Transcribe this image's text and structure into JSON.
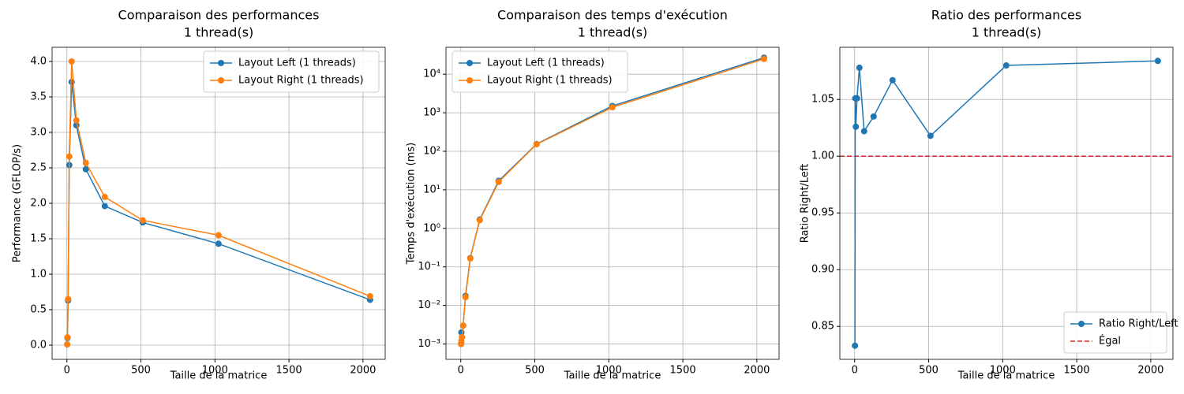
{
  "chart_data": [
    {
      "type": "line",
      "title": "Comparaison des performances",
      "subtitle": "1 thread(s)",
      "xlabel": "Taille de la matrice",
      "ylabel": "Performance (GFLOP/s)",
      "x": [
        2,
        4,
        8,
        16,
        32,
        64,
        128,
        256,
        512,
        1024,
        2048
      ],
      "series": [
        {
          "name": "Layout Left (1 threads)",
          "color": "#1f77b4",
          "values": [
            0.01,
            0.1,
            0.63,
            2.54,
            3.71,
            3.1,
            2.48,
            1.96,
            1.73,
            1.43,
            0.64
          ]
        },
        {
          "name": "Layout Right (1 threads)",
          "color": "#ff7f0e",
          "values": [
            0.01,
            0.11,
            0.65,
            2.66,
            4.0,
            3.17,
            2.57,
            2.09,
            1.76,
            1.55,
            0.69
          ]
        }
      ],
      "xlim": [
        -100,
        2150
      ],
      "xticks": [
        0,
        500,
        1000,
        1500,
        2000
      ],
      "ylim": [
        -0.2,
        4.2
      ],
      "yticks": [
        {
          "value": 0,
          "label": "0.0"
        },
        0.5,
        {
          "value": 1,
          "label": "1.0"
        },
        1.5,
        {
          "value": 2,
          "label": "2.0"
        },
        2.5,
        {
          "value": 3,
          "label": "3.0"
        },
        3.5,
        {
          "value": 4,
          "label": "4.0"
        }
      ],
      "grid": true,
      "legend": "upper right"
    },
    {
      "type": "line",
      "title": "Comparaison des temps d'exécution",
      "subtitle": "1 thread(s)",
      "xlabel": "Taille de la matrice",
      "ylabel": "Temps d'exécution (ms)",
      "x": [
        2,
        4,
        8,
        16,
        32,
        64,
        128,
        256,
        512,
        1024,
        2048
      ],
      "series": [
        {
          "name": "Layout Left (1 threads)",
          "color": "#1f77b4",
          "values": [
            0.001,
            0.002,
            0.0015,
            0.003,
            0.0177,
            0.169,
            1.69,
            17.1,
            155,
            1502,
            26800
          ]
        },
        {
          "name": "Layout Right (1 threads)",
          "color": "#ff7f0e",
          "values": [
            0.001,
            0.0012,
            0.0015,
            0.003,
            0.0164,
            0.165,
            1.63,
            16.0,
            152,
            1385,
            24900
          ]
        }
      ],
      "xlim": [
        -100,
        2150
      ],
      "xticks": [
        0,
        500,
        1000,
        1500,
        2000
      ],
      "yscale": "log",
      "ylim": [
        0.0004,
        50000
      ],
      "yticks": [
        {
          "value": 0.001,
          "label": "10⁻³"
        },
        {
          "value": 0.01,
          "label": "10⁻²"
        },
        {
          "value": 0.1,
          "label": "10⁻¹"
        },
        {
          "value": 1,
          "label": "10⁰"
        },
        {
          "value": 10,
          "label": "10¹"
        },
        {
          "value": 100,
          "label": "10²"
        },
        {
          "value": 1000,
          "label": "10³"
        },
        {
          "value": 10000,
          "label": "10⁴"
        }
      ],
      "grid": true,
      "legend": "upper left"
    },
    {
      "type": "line",
      "title": "Ratio des performances",
      "subtitle": "1 thread(s)",
      "xlabel": "Taille de la matrice",
      "ylabel": "Ratio Right/Left",
      "x": [
        2,
        4,
        8,
        16,
        32,
        64,
        128,
        256,
        512,
        1024,
        2048
      ],
      "series": [
        {
          "name": "Ratio Right/Left",
          "color": "#1f77b4",
          "values": [
            0.833,
            1.051,
            1.026,
            1.051,
            1.078,
            1.022,
            1.035,
            1.067,
            1.018,
            1.08,
            1.084
          ]
        }
      ],
      "hlines": [
        {
          "name": "Égal",
          "y": 1.0,
          "color": "#d62728",
          "style": "dashed"
        }
      ],
      "xlim": [
        -100,
        2150
      ],
      "xticks": [
        0,
        500,
        1000,
        1500,
        2000
      ],
      "ylim": [
        0.821,
        1.096
      ],
      "yticks": [
        0.85,
        {
          "value": 0.9,
          "label": "0.90"
        },
        0.95,
        {
          "value": 1,
          "label": "1.00"
        },
        1.05
      ],
      "grid": true,
      "legend": "lower right"
    }
  ]
}
